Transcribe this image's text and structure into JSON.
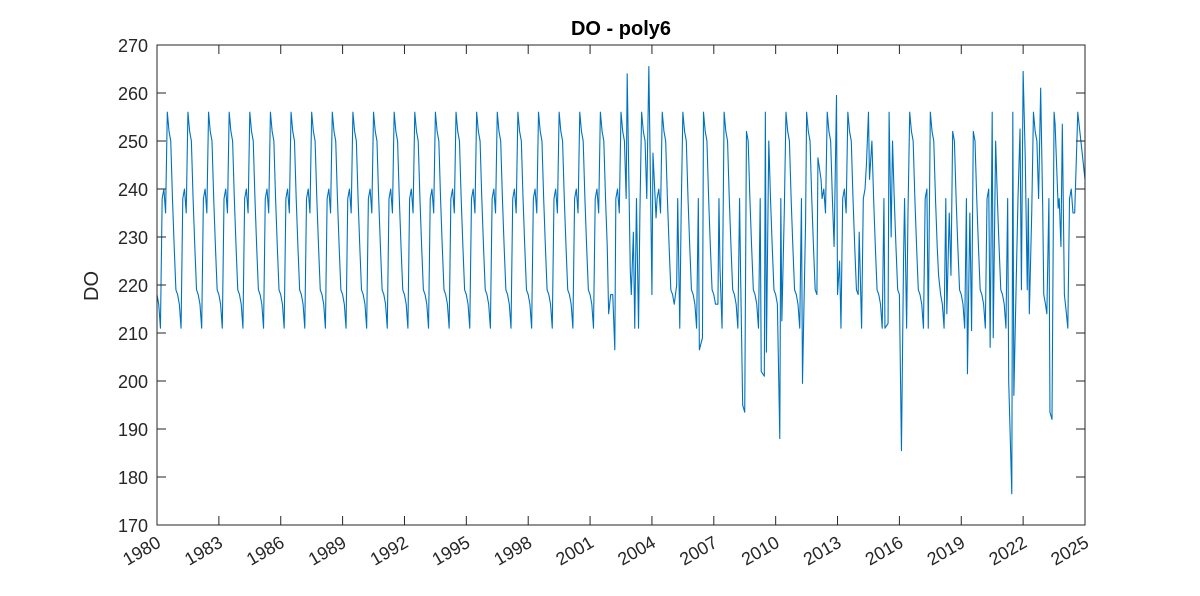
{
  "chart_data": {
    "type": "line",
    "title": "DO - poly6",
    "xlabel": "",
    "ylabel": "DO",
    "xlim": [
      1980,
      2025
    ],
    "ylim": [
      170,
      270
    ],
    "xticks": [
      "1980",
      "1983",
      "1986",
      "1989",
      "1992",
      "1995",
      "1998",
      "2001",
      "2004",
      "2007",
      "2010",
      "2013",
      "2016",
      "2019",
      "2022",
      "2025"
    ],
    "yticks": [
      "170",
      "180",
      "190",
      "200",
      "210",
      "220",
      "230",
      "240",
      "250",
      "260",
      "270"
    ],
    "grid": false,
    "legend": "none",
    "line_color": "#0072BD",
    "seasonal_cycle": [
      218,
      216,
      211,
      238,
      240,
      235,
      256,
      252,
      250,
      238,
      228,
      219
    ],
    "anomalies": [
      {
        "x": 2001.9,
        "y": 214
      },
      {
        "x": 2002.1,
        "y": 218
      },
      {
        "x": 2002.2,
        "y": 206.5
      },
      {
        "x": 2002.8,
        "y": 264
      },
      {
        "x": 2002.95,
        "y": 223
      },
      {
        "x": 2003.1,
        "y": 231
      },
      {
        "x": 2003.35,
        "y": 211
      },
      {
        "x": 2003.85,
        "y": 265.5
      },
      {
        "x": 2003.95,
        "y": 235
      },
      {
        "x": 2004.05,
        "y": 247.5
      },
      {
        "x": 2004.2,
        "y": 234
      },
      {
        "x": 2005.2,
        "y": 220
      },
      {
        "x": 2005.35,
        "y": 211
      },
      {
        "x": 2006.3,
        "y": 206.5
      },
      {
        "x": 2006.45,
        "y": 209
      },
      {
        "x": 2007.2,
        "y": 216
      },
      {
        "x": 2007.3,
        "y": 223.5
      },
      {
        "x": 2007.4,
        "y": 211
      },
      {
        "x": 2008.3,
        "y": 222
      },
      {
        "x": 2008.4,
        "y": 195
      },
      {
        "x": 2008.5,
        "y": 193.5
      },
      {
        "x": 2009.3,
        "y": 202
      },
      {
        "x": 2009.45,
        "y": 201
      },
      {
        "x": 2009.55,
        "y": 206
      },
      {
        "x": 2010.2,
        "y": 188
      },
      {
        "x": 2010.3,
        "y": 212.5
      },
      {
        "x": 2011.3,
        "y": 199.5
      },
      {
        "x": 2011.45,
        "y": 233
      },
      {
        "x": 2012.05,
        "y": 246.5
      },
      {
        "x": 2012.2,
        "y": 242
      },
      {
        "x": 2012.95,
        "y": 259.5
      },
      {
        "x": 2013.1,
        "y": 225
      },
      {
        "x": 2014.05,
        "y": 231
      },
      {
        "x": 2014.4,
        "y": 245
      },
      {
        "x": 2014.55,
        "y": 242
      },
      {
        "x": 2015.3,
        "y": 211
      },
      {
        "x": 2015.45,
        "y": 212
      },
      {
        "x": 2015.6,
        "y": 230
      },
      {
        "x": 2016.1,
        "y": 185.5
      },
      {
        "x": 2016.2,
        "y": 225
      },
      {
        "x": 2016.35,
        "y": 211
      },
      {
        "x": 2017.4,
        "y": 211
      },
      {
        "x": 2017.9,
        "y": 222
      },
      {
        "x": 2018.3,
        "y": 214
      },
      {
        "x": 2018.5,
        "y": 222
      },
      {
        "x": 2019.3,
        "y": 201.5
      },
      {
        "x": 2019.5,
        "y": 210.5
      },
      {
        "x": 2020.4,
        "y": 207
      },
      {
        "x": 2020.55,
        "y": 209
      },
      {
        "x": 2021.3,
        "y": 200
      },
      {
        "x": 2021.45,
        "y": 176.5
      },
      {
        "x": 2021.55,
        "y": 197
      },
      {
        "x": 2021.7,
        "y": 228
      },
      {
        "x": 2021.85,
        "y": 252.5
      },
      {
        "x": 2022.0,
        "y": 264.5
      },
      {
        "x": 2022.1,
        "y": 247
      },
      {
        "x": 2022.2,
        "y": 219
      },
      {
        "x": 2022.3,
        "y": 214
      },
      {
        "x": 2022.85,
        "y": 261
      },
      {
        "x": 2022.95,
        "y": 236
      },
      {
        "x": 2023.15,
        "y": 214
      },
      {
        "x": 2023.3,
        "y": 193.5
      },
      {
        "x": 2023.4,
        "y": 192
      },
      {
        "x": 2023.55,
        "y": 253.5
      },
      {
        "x": 2023.7,
        "y": 236
      },
      {
        "x": 2023.9,
        "y": 253.5
      },
      {
        "x": 2024.1,
        "y": 214
      }
    ],
    "end_values": [
      {
        "x": 2024.5,
        "y": 235
      },
      {
        "x": 2024.65,
        "y": 256
      },
      {
        "x": 2024.8,
        "y": 250
      },
      {
        "x": 2025.0,
        "y": 242
      }
    ]
  }
}
